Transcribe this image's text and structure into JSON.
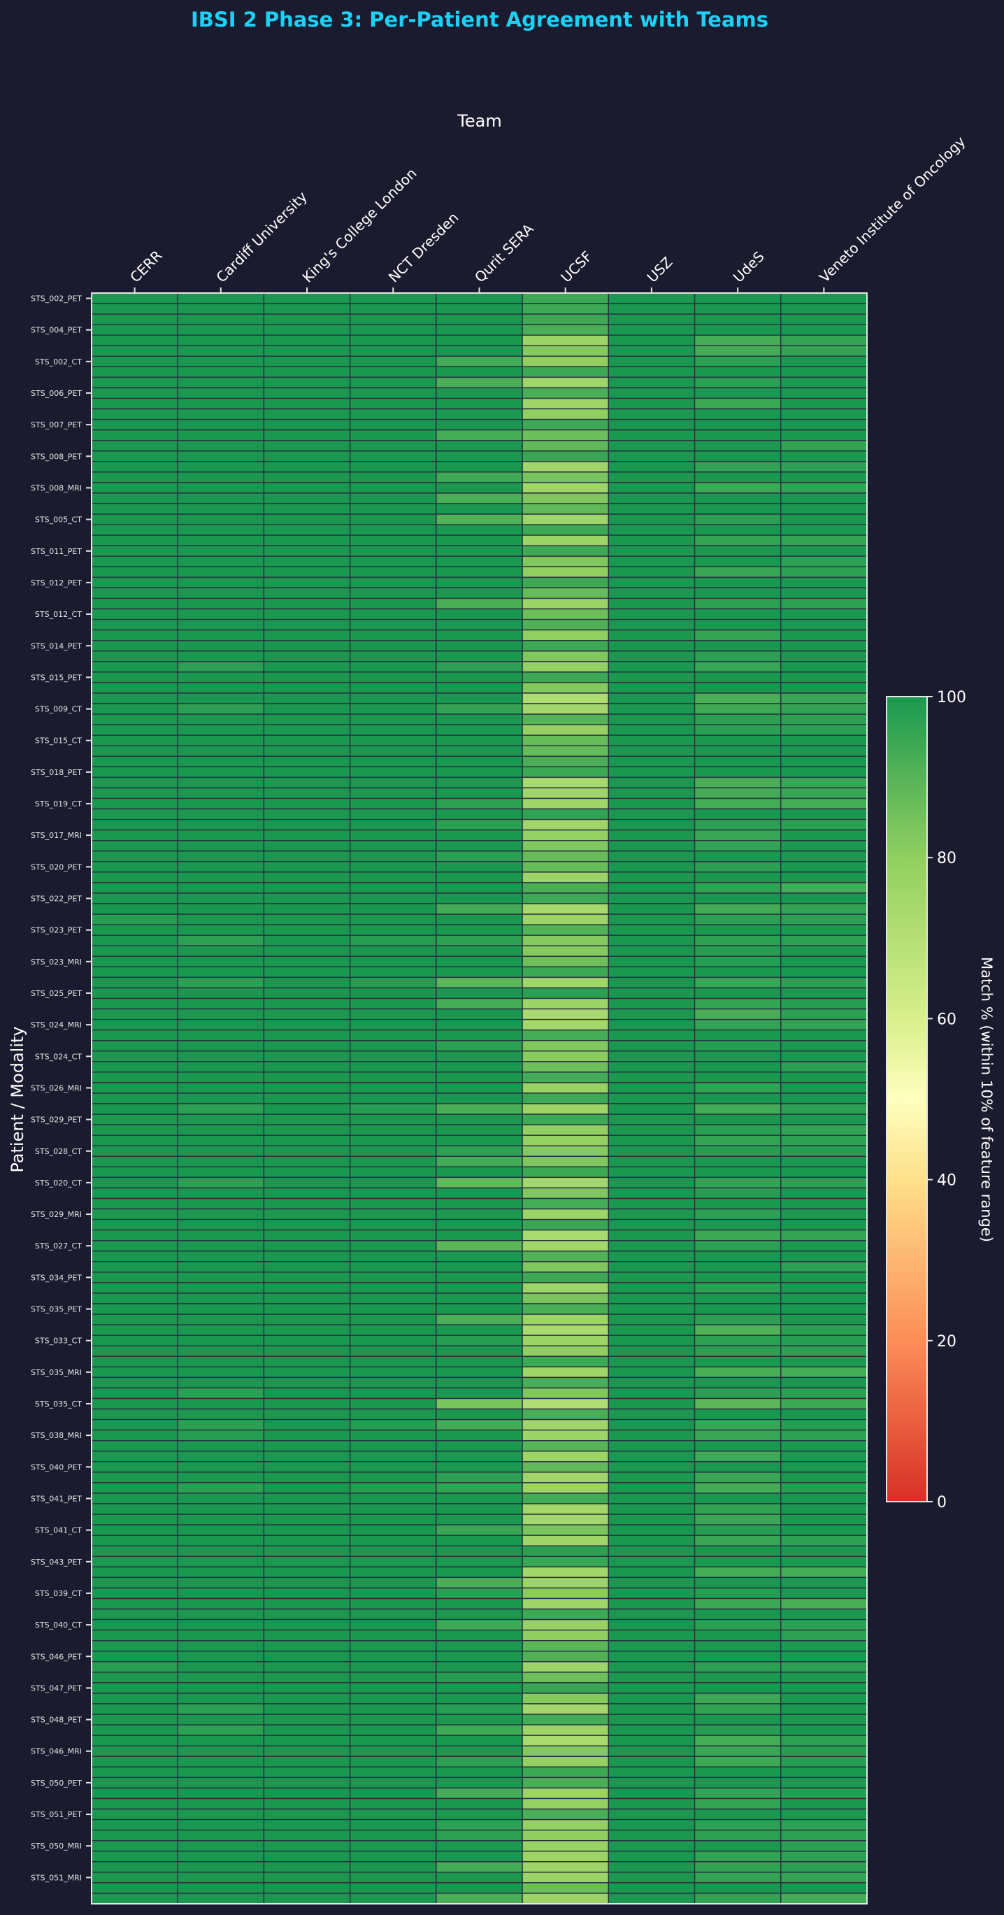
{
  "chart_data": {
    "type": "heatmap",
    "title": "IBSI 2 Phase 3: Per-Patient Agreement with Teams",
    "xlabel": "Team",
    "ylabel": "Patient / Modality",
    "colorbar_label": "Match % (within 10% of feature range)",
    "colorbar_ticks": [
      0,
      20,
      40,
      60,
      80,
      100
    ],
    "value_range": [
      0,
      100
    ],
    "colormap": "RdYlGn",
    "colormap_stops": [
      {
        "value": 0,
        "color": "#d73027"
      },
      {
        "value": 20,
        "color": "#fc8d59"
      },
      {
        "value": 40,
        "color": "#fee08b"
      },
      {
        "value": 50,
        "color": "#ffffbf"
      },
      {
        "value": 60,
        "color": "#d9ef8b"
      },
      {
        "value": 80,
        "color": "#91cf60"
      },
      {
        "value": 100,
        "color": "#1a9850"
      }
    ],
    "x_categories": [
      "CERR",
      "Cardiff University",
      "King's College London",
      "NCT Dresden",
      "Qurit SERA",
      "UCSF",
      "USZ",
      "UdeS",
      "Veneto Institute of Oncology"
    ],
    "y_ticklabels": [
      "STS_002_PET",
      "STS_004_PET",
      "STS_002_CT",
      "STS_006_PET",
      "STS_007_PET",
      "STS_008_PET",
      "STS_008_MRI",
      "STS_005_CT",
      "STS_011_PET",
      "STS_012_PET",
      "STS_012_CT",
      "STS_014_PET",
      "STS_015_PET",
      "STS_009_CT",
      "STS_015_CT",
      "STS_018_PET",
      "STS_019_CT",
      "STS_017_MRI",
      "STS_020_PET",
      "STS_022_PET",
      "STS_023_PET",
      "STS_023_MRI",
      "STS_025_PET",
      "STS_024_MRI",
      "STS_024_CT",
      "STS_026_MRI",
      "STS_029_PET",
      "STS_028_CT",
      "STS_020_CT",
      "STS_029_MRI",
      "STS_027_CT",
      "STS_034_PET",
      "STS_035_PET",
      "STS_033_CT",
      "STS_035_MRI",
      "STS_035_CT",
      "STS_038_MRI",
      "STS_040_PET",
      "STS_041_PET",
      "STS_041_CT",
      "STS_043_PET",
      "STS_039_CT",
      "STS_040_CT",
      "STS_046_PET",
      "STS_047_PET",
      "STS_048_PET",
      "STS_046_MRI",
      "STS_050_PET",
      "STS_051_PET",
      "STS_050_MRI",
      "STS_051_MRI"
    ],
    "values_by_team": [
      [
        100,
        100,
        100,
        100,
        100,
        100,
        100,
        100,
        100,
        100,
        100,
        100,
        100,
        100,
        100,
        100,
        100,
        100,
        100,
        100,
        100,
        100,
        100,
        100,
        100,
        100,
        100,
        100,
        100,
        100,
        100,
        100,
        100,
        100,
        100,
        100,
        100,
        100,
        100,
        100,
        100,
        100,
        100,
        100,
        100,
        100,
        100,
        100,
        100,
        100,
        100,
        100,
        100,
        100,
        100,
        100,
        100,
        100,
        100,
        98,
        100,
        100,
        100,
        100,
        100,
        100,
        100,
        100,
        100,
        100,
        100,
        100,
        100,
        100,
        100,
        100,
        100,
        100,
        100,
        100,
        100,
        100,
        100,
        100,
        100,
        100,
        100,
        100,
        100,
        100,
        100,
        100,
        100,
        100,
        100,
        100,
        100,
        100,
        100,
        100,
        100,
        100,
        100,
        100,
        100,
        100,
        100,
        100,
        100,
        100,
        100,
        100,
        100,
        100,
        100,
        100,
        100,
        100,
        100,
        100,
        100,
        100,
        100,
        100,
        100,
        100,
        100,
        100,
        100,
        100,
        98,
        100,
        100,
        100,
        100,
        100,
        100,
        100,
        100,
        100,
        100,
        100,
        100,
        100,
        100,
        100,
        100,
        100,
        100,
        100,
        100,
        100,
        100
      ],
      [
        100,
        100,
        100,
        100,
        100,
        100,
        100,
        100,
        100,
        100,
        100,
        100,
        100,
        100,
        100,
        100,
        100,
        100,
        100,
        100,
        100,
        100,
        100,
        100,
        100,
        100,
        100,
        100,
        100,
        100,
        100,
        100,
        100,
        100,
        100,
        97,
        100,
        100,
        100,
        97,
        100,
        100,
        100,
        100,
        100,
        100,
        100,
        100,
        100,
        100,
        100,
        100,
        100,
        100,
        100,
        100,
        100,
        100,
        100,
        100,
        100,
        97,
        100,
        100,
        100,
        97,
        100,
        100,
        100,
        100,
        100,
        100,
        100,
        100,
        100,
        100,
        100,
        97,
        100,
        100,
        100,
        100,
        100,
        100,
        97,
        100,
        100,
        100,
        100,
        100,
        100,
        100,
        100,
        100,
        100,
        100,
        100,
        100,
        100,
        100,
        100,
        100,
        100,
        100,
        97,
        100,
        100,
        97,
        98,
        100,
        100,
        100,
        100,
        97,
        100,
        100,
        100,
        100,
        100,
        100,
        100,
        100,
        100,
        100,
        100,
        100,
        100,
        100,
        100,
        100,
        100,
        100,
        100,
        100,
        97,
        100,
        97,
        100,
        100,
        100,
        100,
        100,
        100,
        100,
        100,
        100,
        100,
        100,
        100,
        100,
        100,
        100,
        100
      ],
      [
        100,
        100,
        100,
        100,
        100,
        100,
        100,
        100,
        100,
        100,
        100,
        100,
        100,
        100,
        100,
        100,
        100,
        100,
        100,
        100,
        100,
        100,
        100,
        100,
        100,
        100,
        100,
        100,
        100,
        100,
        100,
        100,
        100,
        100,
        100,
        100,
        100,
        100,
        100,
        100,
        100,
        100,
        100,
        100,
        100,
        100,
        100,
        100,
        100,
        100,
        100,
        100,
        100,
        100,
        100,
        100,
        100,
        100,
        100,
        100,
        100,
        100,
        100,
        100,
        100,
        100,
        100,
        100,
        100,
        100,
        100,
        100,
        100,
        100,
        100,
        100,
        100,
        100,
        100,
        100,
        100,
        100,
        100,
        100,
        100,
        100,
        100,
        100,
        100,
        100,
        100,
        100,
        100,
        100,
        100,
        100,
        100,
        100,
        100,
        100,
        100,
        100,
        100,
        100,
        100,
        100,
        100,
        100,
        100,
        100,
        100,
        100,
        100,
        100,
        100,
        100,
        100,
        100,
        100,
        100,
        100,
        100,
        100,
        100,
        100,
        100,
        100,
        100,
        100,
        100,
        100,
        100,
        100,
        100,
        100,
        100,
        100,
        100,
        100,
        100,
        100,
        100,
        100,
        100,
        100,
        100,
        100,
        100,
        100,
        100,
        100,
        100,
        100
      ],
      [
        100,
        100,
        100,
        100,
        100,
        100,
        100,
        100,
        100,
        100,
        100,
        100,
        100,
        100,
        100,
        100,
        100,
        100,
        100,
        100,
        100,
        100,
        100,
        100,
        100,
        100,
        100,
        100,
        100,
        100,
        100,
        100,
        100,
        100,
        100,
        100,
        100,
        100,
        100,
        100,
        100,
        100,
        100,
        100,
        100,
        100,
        100,
        100,
        100,
        100,
        100,
        100,
        100,
        100,
        100,
        100,
        100,
        100,
        100,
        100,
        100,
        98,
        100,
        100,
        100,
        98,
        100,
        100,
        100,
        100,
        100,
        100,
        100,
        100,
        100,
        100,
        100,
        98,
        100,
        100,
        100,
        100,
        100,
        100,
        100,
        100,
        100,
        100,
        100,
        100,
        100,
        100,
        100,
        100,
        100,
        100,
        100,
        100,
        100,
        100,
        100,
        100,
        100,
        100,
        100,
        100,
        100,
        98,
        100,
        100,
        100,
        100,
        100,
        98,
        100,
        100,
        100,
        100,
        100,
        100,
        100,
        100,
        100,
        100,
        100,
        100,
        100,
        100,
        100,
        100,
        100,
        100,
        100,
        100,
        100,
        100,
        100,
        100,
        100,
        100,
        100,
        100,
        100,
        100,
        100,
        100,
        100,
        100,
        100,
        100,
        100,
        100,
        100
      ],
      [
        100,
        100,
        100,
        100,
        100,
        100,
        93,
        100,
        92,
        100,
        100,
        100,
        100,
        93,
        100,
        100,
        100,
        94,
        100,
        92,
        100,
        91,
        100,
        100,
        100,
        100,
        100,
        100,
        100,
        92,
        100,
        100,
        100,
        100,
        100,
        97,
        100,
        100,
        100,
        96,
        100,
        100,
        100,
        100,
        100,
        100,
        100,
        100,
        97,
        100,
        97,
        100,
        100,
        97,
        100,
        100,
        100,
        100,
        93,
        100,
        100,
        97,
        100,
        100,
        100,
        89,
        100,
        93,
        100,
        100,
        100,
        97,
        100,
        100,
        100,
        100,
        100,
        92,
        100,
        100,
        100,
        97,
        93,
        100,
        88,
        100,
        100,
        100,
        100,
        100,
        89,
        100,
        100,
        100,
        100,
        100,
        100,
        92,
        100,
        98,
        100,
        100,
        100,
        100,
        100,
        84,
        100,
        93,
        100,
        100,
        100,
        100,
        97,
        96,
        100,
        100,
        100,
        95,
        100,
        100,
        100,
        100,
        92,
        97,
        100,
        100,
        94,
        100,
        100,
        100,
        100,
        98,
        100,
        100,
        98,
        100,
        94,
        100,
        100,
        97,
        100,
        100,
        93,
        100,
        100,
        97,
        97,
        100,
        100,
        93,
        100,
        100,
        92
      ],
      [
        94,
        94,
        94,
        92,
        77,
        82,
        80,
        94,
        76,
        92,
        76,
        80,
        94,
        86,
        88,
        95,
        76,
        84,
        76,
        83,
        88,
        76,
        94,
        77,
        94,
        83,
        80,
        94,
        87,
        77,
        86,
        91,
        80,
        94,
        83,
        79,
        94,
        82,
        72,
        75,
        90,
        79,
        87,
        87,
        92,
        94,
        74,
        76,
        76,
        96,
        76,
        79,
        83,
        87,
        87,
        77,
        92,
        94,
        74,
        77,
        91,
        82,
        82,
        86,
        94,
        76,
        97,
        77,
        73,
        75,
        93,
        83,
        81,
        86,
        93,
        78,
        94,
        77,
        94,
        80,
        79,
        82,
        83,
        94,
        75,
        83,
        93,
        77,
        95,
        73,
        75,
        91,
        83,
        94,
        77,
        84,
        92,
        77,
        73,
        77,
        80,
        94,
        76,
        92,
        83,
        71,
        92,
        76,
        77,
        90,
        77,
        88,
        76,
        77,
        93,
        75,
        75,
        84,
        76,
        97,
        95,
        75,
        77,
        81,
        76,
        94,
        78,
        80,
        89,
        91,
        77,
        86,
        95,
        82,
        75,
        93,
        77,
        73,
        82,
        79,
        94,
        92,
        77,
        79,
        92,
        79,
        80,
        78,
        77,
        77,
        77,
        86,
        77
      ],
      [
        100,
        100,
        100,
        100,
        100,
        100,
        100,
        100,
        100,
        100,
        100,
        100,
        100,
        100,
        100,
        100,
        100,
        100,
        100,
        100,
        100,
        100,
        100,
        100,
        100,
        100,
        100,
        100,
        100,
        100,
        100,
        100,
        100,
        100,
        100,
        100,
        100,
        100,
        100,
        100,
        100,
        100,
        100,
        100,
        100,
        100,
        100,
        100,
        100,
        100,
        100,
        100,
        100,
        100,
        100,
        100,
        100,
        100,
        100,
        100,
        100,
        100,
        100,
        100,
        100,
        100,
        100,
        100,
        100,
        100,
        100,
        100,
        100,
        100,
        100,
        100,
        100,
        100,
        100,
        100,
        100,
        100,
        100,
        100,
        100,
        100,
        100,
        100,
        100,
        100,
        100,
        100,
        100,
        100,
        100,
        100,
        100,
        100,
        100,
        100,
        100,
        100,
        100,
        100,
        100,
        100,
        100,
        100,
        100,
        100,
        100,
        100,
        100,
        100,
        100,
        100,
        100,
        100,
        100,
        100,
        100,
        100,
        100,
        100,
        100,
        100,
        100,
        100,
        100,
        100,
        100,
        100,
        100,
        100,
        100,
        100,
        100,
        100,
        100,
        100,
        100,
        100,
        100,
        100,
        100,
        100,
        100,
        100,
        100,
        100,
        100,
        100,
        100
      ],
      [
        100,
        100,
        100,
        100,
        93,
        93,
        97,
        100,
        97,
        100,
        94,
        100,
        100,
        100,
        100,
        100,
        96,
        100,
        94,
        100,
        100,
        97,
        100,
        96,
        100,
        100,
        95,
        100,
        100,
        97,
        100,
        100,
        96,
        100,
        97,
        95,
        100,
        100,
        92,
        94,
        97,
        97,
        100,
        100,
        100,
        100,
        92,
        93,
        93,
        100,
        97,
        95,
        96,
        100,
        97,
        100,
        96,
        100,
        93,
        97,
        100,
        97,
        98,
        98,
        100,
        95,
        100,
        96,
        92,
        96,
        100,
        98,
        100,
        100,
        100,
        96,
        100,
        93,
        100,
        97,
        96,
        98,
        100,
        100,
        96,
        98,
        100,
        97,
        100,
        94,
        97,
        100,
        100,
        100,
        97,
        100,
        100,
        97,
        91,
        97,
        97,
        100,
        92,
        100,
        97,
        89,
        100,
        95,
        95,
        100,
        94,
        100,
        95,
        93,
        100,
        96,
        95,
        98,
        95,
        100,
        100,
        93,
        100,
        98,
        94,
        100,
        97,
        100,
        100,
        100,
        97,
        100,
        100,
        94,
        96,
        100,
        98,
        93,
        95,
        94,
        100,
        100,
        96,
        96,
        100,
        97,
        97,
        100,
        96,
        96,
        96,
        100,
        96
      ],
      [
        100,
        100,
        100,
        100,
        96,
        96,
        100,
        100,
        100,
        100,
        100,
        100,
        100,
        100,
        96,
        100,
        97,
        100,
        96,
        100,
        100,
        100,
        100,
        96,
        100,
        97,
        97,
        100,
        100,
        97,
        100,
        100,
        100,
        100,
        100,
        100,
        100,
        100,
        95,
        96,
        97,
        97,
        100,
        100,
        100,
        100,
        95,
        95,
        93,
        100,
        97,
        100,
        100,
        100,
        100,
        100,
        93,
        100,
        96,
        97,
        100,
        97,
        100,
        100,
        100,
        97,
        100,
        98,
        97,
        96,
        100,
        100,
        100,
        97,
        100,
        100,
        100,
        97,
        100,
        96,
        97,
        98,
        100,
        100,
        97,
        100,
        100,
        100,
        100,
        96,
        100,
        100,
        97,
        100,
        100,
        100,
        100,
        100,
        97,
        98,
        97,
        100,
        93,
        100,
        97,
        94,
        100,
        98,
        97,
        100,
        100,
        100,
        100,
        98,
        100,
        100,
        100,
        100,
        97,
        100,
        100,
        93,
        100,
        100,
        92,
        100,
        97,
        97,
        100,
        100,
        97,
        100,
        100,
        100,
        100,
        100,
        100,
        97,
        98,
        98,
        100,
        100,
        98,
        100,
        100,
        97,
        97,
        97,
        97,
        97,
        96,
        100,
        93
      ]
    ]
  }
}
